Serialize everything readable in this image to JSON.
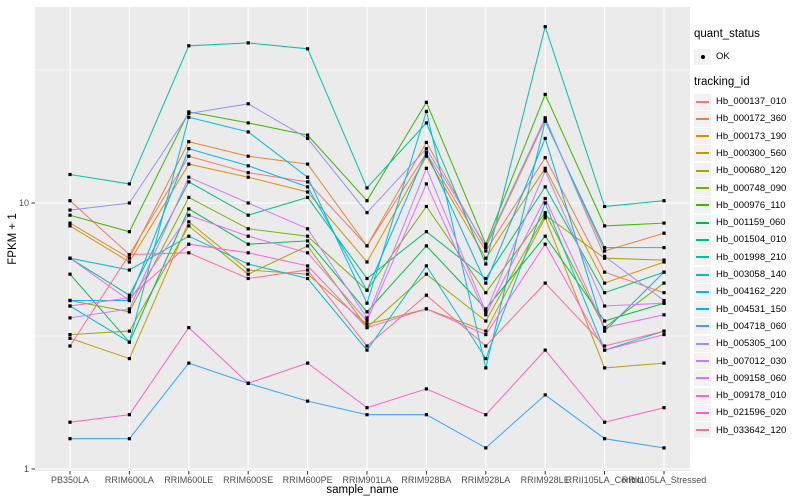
{
  "colors": {
    "panel_bg": "#EBEBEB",
    "grid": "#FFFFFF",
    "axis_text": "#4D4D4D",
    "text": "#000000",
    "point": "#000000",
    "legend_key_bg": "#F2F2F2"
  },
  "legend": {
    "quant_status": {
      "title": "quant_status",
      "items": [
        {
          "label": "OK",
          "marker": "black-point"
        }
      ]
    },
    "tracking_id": {
      "title": "tracking_id"
    }
  },
  "chart_data": {
    "type": "line",
    "title": "",
    "xlabel": "sample_name",
    "ylabel": "FPKM + 1",
    "yscale": "log10",
    "ylim": [
      1,
      55
    ],
    "yticks": [
      1,
      10
    ],
    "ytick_labels": [
      "1",
      "10"
    ],
    "yminor": [
      3.1623,
      31.623
    ],
    "grid": true,
    "legend_position": "right",
    "point_shape": "black-square",
    "x_categories": [
      "PB350LA",
      "RRIM600LA",
      "RRIM600LE",
      "RRIM600SE",
      "RRIM600PE",
      "RRIM901LA",
      "RRIM928BA",
      "RRIM928LA",
      "RRIM928LE",
      "RRII105LA_Control",
      "RRII105LA_Stressed"
    ],
    "series": [
      {
        "name": "Hb_000137_010",
        "color": "#F8766D",
        "quant_status": "OK",
        "values": [
          10.2,
          6.4,
          15.0,
          13.0,
          12.0,
          6.9,
          15.4,
          6.6,
          14.8,
          5.5,
          4.6
        ]
      },
      {
        "name": "Hb_000172_360",
        "color": "#EA8331",
        "quant_status": "OK",
        "values": [
          8.4,
          6.2,
          17.0,
          15.0,
          14.0,
          6.9,
          16.9,
          6.8,
          20.5,
          6.6,
          7.7
        ]
      },
      {
        "name": "Hb_000173_190",
        "color": "#D89000",
        "quant_status": "OK",
        "values": [
          8.2,
          6.0,
          14.0,
          12.5,
          11.0,
          6.0,
          15.0,
          6.2,
          13.5,
          5.0,
          6.0
        ]
      },
      {
        "name": "Hb_000300_560",
        "color": "#C09B00",
        "quant_status": "OK",
        "values": [
          3.1,
          2.6,
          8.5,
          5.6,
          5.4,
          3.5,
          4.0,
          3.3,
          8.8,
          2.4,
          2.5
        ]
      },
      {
        "name": "Hb_000680_120",
        "color": "#A3A500",
        "quant_status": "OK",
        "values": [
          3.2,
          3.3,
          8.2,
          5.4,
          6.9,
          3.4,
          5.4,
          3.6,
          9.0,
          6.2,
          6.1
        ]
      },
      {
        "name": "Hb_000748_090",
        "color": "#7CAE00",
        "quant_status": "OK",
        "values": [
          4.3,
          3.9,
          10.5,
          8.0,
          7.5,
          4.7,
          9.7,
          4.6,
          9.2,
          3.4,
          5.0
        ]
      },
      {
        "name": "Hb_000976_110",
        "color": "#39B600",
        "quant_status": "OK",
        "values": [
          9.0,
          7.8,
          22.0,
          20.0,
          18.0,
          10.2,
          23.9,
          7.0,
          25.6,
          8.2,
          8.4
        ]
      },
      {
        "name": "Hb_001159_060",
        "color": "#00BB4E",
        "quant_status": "OK",
        "values": [
          5.4,
          3.0,
          9.5,
          7.0,
          7.2,
          3.9,
          6.9,
          4.0,
          7.5,
          3.6,
          4.2
        ]
      },
      {
        "name": "Hb_001504_010",
        "color": "#00BF7D",
        "quant_status": "OK",
        "values": [
          6.2,
          4.5,
          12.0,
          9.0,
          10.5,
          5.2,
          7.8,
          5.2,
          11.5,
          4.6,
          5.5
        ]
      },
      {
        "name": "Hb_001998_210",
        "color": "#00C1A3",
        "quant_status": "OK",
        "values": [
          12.8,
          11.8,
          39.0,
          40.0,
          38.0,
          11.4,
          20.0,
          5.9,
          46.0,
          9.7,
          10.2
        ]
      },
      {
        "name": "Hb_003058_140",
        "color": "#00BFC4",
        "quant_status": "OK",
        "values": [
          6.2,
          5.6,
          7.5,
          5.9,
          5.2,
          2.8,
          5.8,
          2.6,
          10.0,
          2.8,
          3.3
        ]
      },
      {
        "name": "Hb_004162_220",
        "color": "#00BAE0",
        "quant_status": "OK",
        "values": [
          4.1,
          3.0,
          21.0,
          18.5,
          12.5,
          4.2,
          22.1,
          2.4,
          20.3,
          6.8,
          6.8
        ]
      },
      {
        "name": "Hb_004531_150",
        "color": "#00B0F6",
        "quant_status": "OK",
        "values": [
          4.3,
          4.3,
          16.0,
          13.8,
          11.5,
          4.7,
          15.5,
          5.0,
          17.5,
          3.3,
          5.5
        ]
      },
      {
        "name": "Hb_004718_060",
        "color": "#35A2FF",
        "quant_status": "OK",
        "values": [
          1.3,
          1.3,
          2.5,
          2.1,
          1.8,
          1.6,
          1.6,
          1.2,
          1.9,
          1.3,
          1.2
        ]
      },
      {
        "name": "Hb_005305_100",
        "color": "#9590FF",
        "quant_status": "OK",
        "values": [
          9.4,
          10.0,
          21.7,
          23.6,
          17.5,
          9.2,
          16.0,
          6.9,
          20.9,
          6.3,
          4.3
        ]
      },
      {
        "name": "Hb_007012_030",
        "color": "#C77CFF",
        "quant_status": "OK",
        "values": [
          3.7,
          4.0,
          12.5,
          10.0,
          8.0,
          3.7,
          13.5,
          3.9,
          13.2,
          4.1,
          4.2
        ]
      },
      {
        "name": "Hb_009158_060",
        "color": "#E76BF3",
        "quant_status": "OK",
        "values": [
          6.2,
          4.3,
          9.0,
          7.5,
          6.5,
          3.6,
          11.8,
          3.8,
          10.4,
          3.4,
          3.8
        ]
      },
      {
        "name": "Hb_009178_010",
        "color": "#FA62DB",
        "quant_status": "OK",
        "values": [
          4.1,
          4.4,
          7.0,
          6.5,
          5.8,
          3.4,
          4.0,
          3.2,
          7.0,
          2.8,
          3.2
        ]
      },
      {
        "name": "Hb_021596_020",
        "color": "#FF62BC",
        "quant_status": "OK",
        "values": [
          1.5,
          1.6,
          3.4,
          2.1,
          2.5,
          1.7,
          2.0,
          1.6,
          2.8,
          1.5,
          1.7
        ]
      },
      {
        "name": "Hb_033642_120",
        "color": "#FF6A98",
        "quant_status": "OK",
        "values": [
          2.9,
          6.4,
          6.5,
          5.2,
          5.6,
          2.9,
          4.5,
          2.9,
          5.0,
          2.9,
          3.3
        ]
      }
    ]
  }
}
